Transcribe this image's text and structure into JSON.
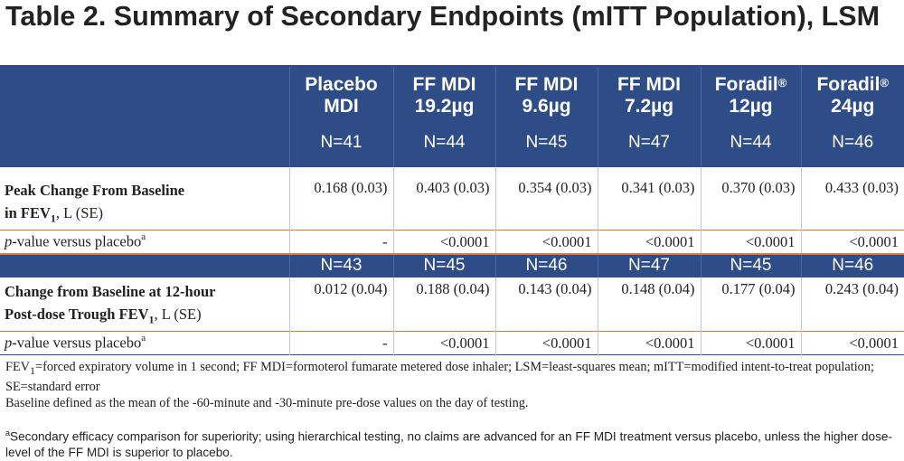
{
  "title": "Table 2. Summary of Secondary Endpoints (mITT Population), LSM",
  "columns": [
    {
      "line1": "Placebo",
      "reg": "",
      "line2": "MDI",
      "n": "N=41"
    },
    {
      "line1": "FF MDI",
      "reg": "",
      "line2": "19.2µg",
      "n": "N=44"
    },
    {
      "line1": "FF MDI",
      "reg": "",
      "line2": "9.6µg",
      "n": "N=45"
    },
    {
      "line1": "FF MDI",
      "reg": "",
      "line2": "7.2µg",
      "n": "N=47"
    },
    {
      "line1": "Foradil",
      "reg": "®",
      "line2": "12µg",
      "n": "N=44"
    },
    {
      "line1": "Foradil",
      "reg": "®",
      "line2": "24µg",
      "n": "N=46"
    }
  ],
  "endpoint1": {
    "label_line1": "Peak Change From Baseline",
    "label_line2": "in FEV",
    "label_sub": "1",
    "label_unit": ", L (SE)",
    "values": [
      "0.168 (0.03)",
      "0.403 (0.03)",
      "0.354 (0.03)",
      "0.341 (0.03)",
      "0.370 (0.03)",
      "0.433 (0.03)"
    ],
    "pvalue_italic": "p",
    "pvalue_label": "-value versus placebo",
    "pvalue_sup": "a",
    "pvalues": [
      "-",
      "<0.0001",
      "<0.0001",
      "<0.0001",
      "<0.0001",
      "<0.0001"
    ]
  },
  "endpoint2": {
    "n_values": [
      "N=43",
      "N=45",
      "N=46",
      "N=47",
      "N=45",
      "N=46"
    ],
    "label_line1": "Change from Baseline at 12-hour",
    "label_line2": "Post-dose Trough FEV",
    "label_sub": "1",
    "label_unit": ", L (SE)",
    "values": [
      "0.012 (0.04)",
      "0.188 (0.04)",
      "0.143 (0.04)",
      "0.148 (0.04)",
      "0.177 (0.04)",
      "0.243 (0.04)"
    ],
    "pvalue_italic": "p",
    "pvalue_label": "-value versus placebo",
    "pvalue_sup": "a",
    "pvalues": [
      "-",
      "<0.0001",
      "<0.0001",
      "<0.0001",
      "<0.0001",
      "<0.0001"
    ]
  },
  "footnotes": {
    "abbrev_prefix": "FEV",
    "abbrev_sub": "1",
    "abbrev_text": "=forced expiratory volume in 1 second; FF MDI=formoterol fumarate metered dose inhaler; LSM=least-squares mean; mITT=modified intent-to-treat population; SE=standard error",
    "baseline": "Baseline defined as the mean of the -60-minute and -30-minute pre-dose values on the day of testing.",
    "note_a_marker": "a",
    "note_a": "Secondary efficacy comparison for superiority; using hierarchical testing, no claims are advanced for an FF MDI  treatment versus placebo, unless the higher dose-level of the FF MDI is superior to placebo."
  }
}
